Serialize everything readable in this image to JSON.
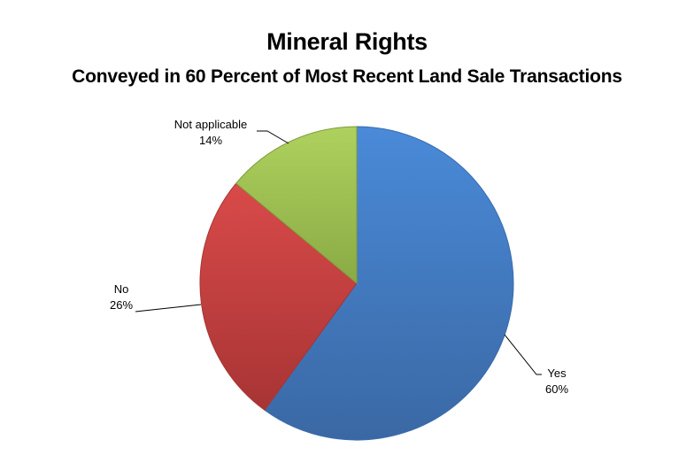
{
  "chart_data": {
    "type": "pie",
    "title": "Mineral Rights",
    "subtitle": "Conveyed in 60 Percent of Most Recent Land Sale Transactions",
    "categories": [
      "Yes",
      "No",
      "Not applicable"
    ],
    "values": [
      60,
      26,
      14
    ],
    "value_labels": [
      "60%",
      "26%",
      "14%"
    ],
    "colors": [
      "#4a86cf",
      "#c94444",
      "#9fbf4f"
    ],
    "start_angle_deg": 0,
    "direction": "clockwise",
    "legend": "none (data labels with leader lines)"
  },
  "labels": {
    "yes": {
      "name": "Yes",
      "pct": "60%"
    },
    "no": {
      "name": "No",
      "pct": "26%"
    },
    "na": {
      "name": "Not applicable",
      "pct": "14%"
    }
  }
}
